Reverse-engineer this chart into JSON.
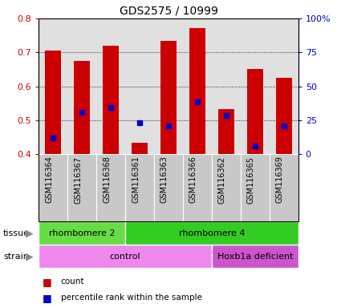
{
  "title": "GDS2575 / 10999",
  "categories": [
    "GSM116364",
    "GSM116367",
    "GSM116368",
    "GSM116361",
    "GSM116363",
    "GSM116366",
    "GSM116362",
    "GSM116365",
    "GSM116369"
  ],
  "bar_tops": [
    0.705,
    0.675,
    0.72,
    0.432,
    0.733,
    0.772,
    0.533,
    0.652,
    0.625
  ],
  "bar_base": 0.4,
  "blue_values": [
    0.448,
    0.522,
    0.537,
    0.493,
    0.483,
    0.554,
    0.513,
    0.423,
    0.483
  ],
  "bar_color": "#cc0000",
  "blue_color": "#0000cc",
  "ylim": [
    0.4,
    0.8
  ],
  "yticks_left": [
    0.4,
    0.5,
    0.6,
    0.7,
    0.8
  ],
  "yticks_right_labels": [
    "0",
    "25",
    "50",
    "75",
    "100%"
  ],
  "yticks_right_values": [
    0.4,
    0.5,
    0.6,
    0.7,
    0.8
  ],
  "tissue_groups": [
    {
      "label": "rhombomere 2",
      "start": 0,
      "end": 3,
      "color": "#66dd44"
    },
    {
      "label": "rhombomere 4",
      "start": 3,
      "end": 9,
      "color": "#33cc22"
    }
  ],
  "strain_groups": [
    {
      "label": "control",
      "start": 0,
      "end": 6,
      "color": "#ee88ee"
    },
    {
      "label": "Hoxb1a deficient",
      "start": 6,
      "end": 9,
      "color": "#cc55cc"
    }
  ],
  "tissue_label": "tissue",
  "strain_label": "strain",
  "legend_count_color": "#cc0000",
  "legend_percentile_color": "#0000cc",
  "legend_count_label": "count",
  "legend_percentile_label": "percentile rank within the sample",
  "background_color": "#ffffff",
  "plot_bg_color": "#e0e0e0",
  "xlabel_bg_color": "#c8c8c8",
  "left_axis_color": "#cc0000",
  "right_axis_color": "#0000cc"
}
